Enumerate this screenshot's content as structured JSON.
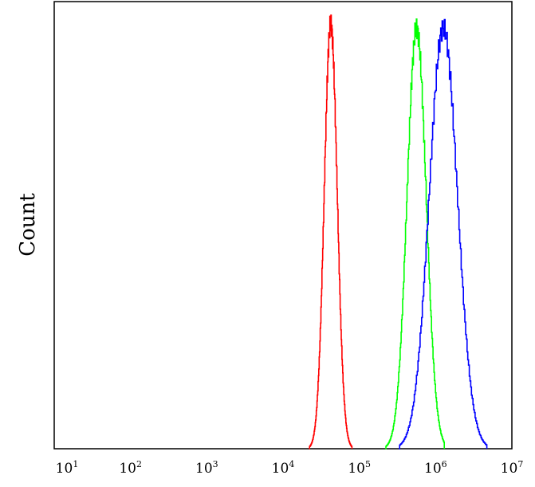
{
  "chart_data": {
    "type": "line",
    "ylabel": "Count",
    "x_scale": "log",
    "xlim": [
      10,
      10000000
    ],
    "ylim": [
      0,
      100
    ],
    "grid": false,
    "x_ticks": [
      {
        "value": 10,
        "base": "10",
        "exp": "1"
      },
      {
        "value": 100,
        "base": "10",
        "exp": "2"
      },
      {
        "value": 1000,
        "base": "10",
        "exp": "3"
      },
      {
        "value": 10000,
        "base": "10",
        "exp": "4"
      },
      {
        "value": 100000,
        "base": "10",
        "exp": "5"
      },
      {
        "value": 1000000,
        "base": "10",
        "exp": "6"
      },
      {
        "value": 10000000,
        "base": "10",
        "exp": "7"
      }
    ],
    "series": [
      {
        "color": "#ff0000",
        "peak_x": 42000,
        "peak_y": 100,
        "sigma_log10": 0.085,
        "x_start": 22000,
        "x_end": 80000
      },
      {
        "color": "#00ff00",
        "peak_x": 560000,
        "peak_y": 99,
        "sigma_log10": 0.125,
        "x_start": 220000,
        "x_end": 1300000
      },
      {
        "color": "#0000ff",
        "peak_x": 1250000,
        "peak_y": 99,
        "sigma_log10": 0.185,
        "x_start": 330000,
        "x_end": 4700000
      }
    ]
  }
}
